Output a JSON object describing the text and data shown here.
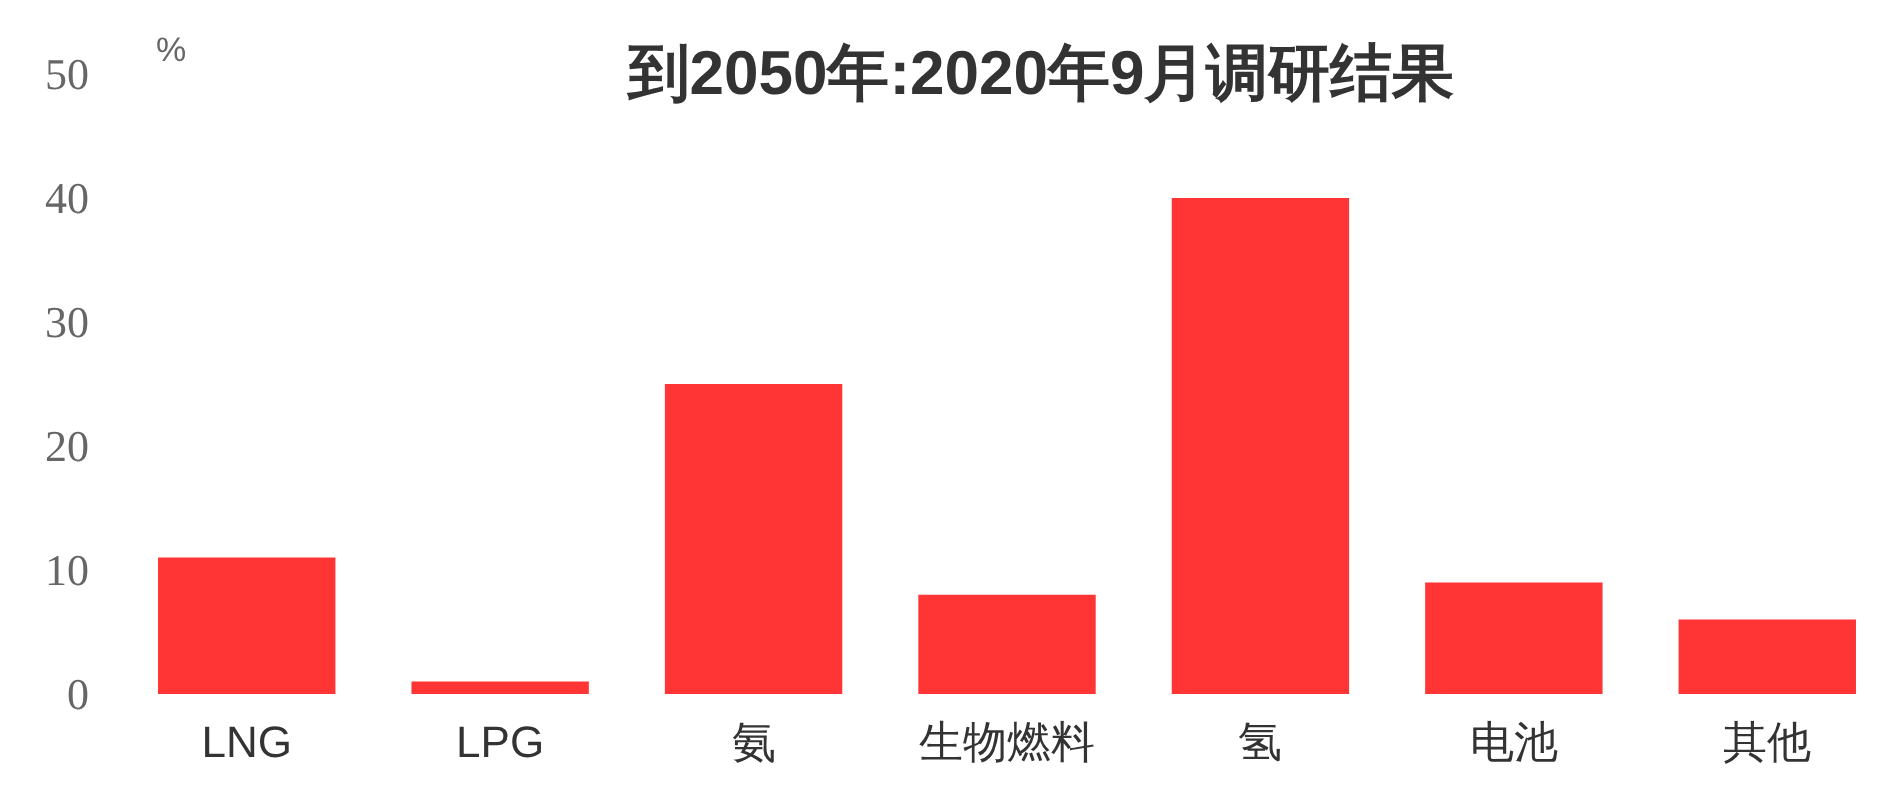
{
  "chart_data": {
    "type": "bar",
    "title": "到2050年:2020年9月调研结果",
    "ylabel": "%",
    "categories": [
      "LNG",
      "LPG",
      "氨",
      "生物燃料",
      "氢",
      "电池",
      "其他"
    ],
    "values": [
      11,
      1,
      25,
      8,
      40,
      9,
      6
    ],
    "color": "#ff3535",
    "ylim": [
      0,
      50
    ],
    "yticks": [
      0,
      10,
      20,
      30,
      40,
      50
    ],
    "grid": false
  }
}
